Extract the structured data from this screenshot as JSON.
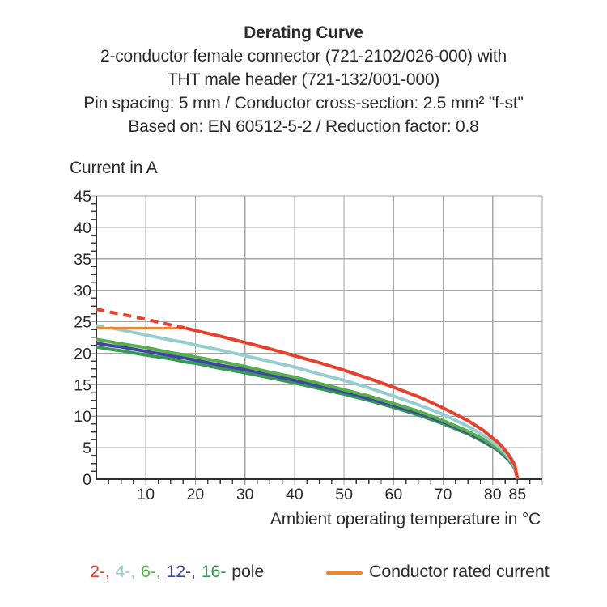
{
  "header": {
    "title": "Derating Curve",
    "subtitle_lines": [
      "2-conductor female connector (721-2102/026-000) with",
      "THT male header (721-132/001-000)",
      "Pin spacing: 5 mm / Conductor cross-section: 2.5 mm² \"f-st\"",
      "Based on: EN 60512-5-2 / Reduction factor: 0.8"
    ]
  },
  "chart_data": {
    "type": "line",
    "title": "Derating Curve",
    "xlabel": "Ambient operating temperature in °C",
    "ylabel": "Current in A",
    "xlim": [
      0,
      90
    ],
    "ylim": [
      0,
      45
    ],
    "grid": true,
    "x_major_step": 10,
    "x_minor_step": 2.5,
    "y_major_step": 5,
    "y_minor_step": 1.25,
    "x_tick_labels": [
      {
        "v": 10,
        "t": "10"
      },
      {
        "v": 20,
        "t": "20"
      },
      {
        "v": 30,
        "t": "30"
      },
      {
        "v": 40,
        "t": "40"
      },
      {
        "v": 50,
        "t": "50"
      },
      {
        "v": 60,
        "t": "60"
      },
      {
        "v": 70,
        "t": "70"
      },
      {
        "v": 80,
        "t": "80"
      },
      {
        "v": 85,
        "t": "85"
      }
    ],
    "y_tick_labels": [
      {
        "v": 0,
        "t": "0"
      },
      {
        "v": 5,
        "t": "5"
      },
      {
        "v": 10,
        "t": "10"
      },
      {
        "v": 15,
        "t": "15"
      },
      {
        "v": 20,
        "t": "20"
      },
      {
        "v": 25,
        "t": "25"
      },
      {
        "v": 30,
        "t": "30"
      },
      {
        "v": 35,
        "t": "35"
      },
      {
        "v": 40,
        "t": "40"
      },
      {
        "v": 45,
        "t": "45"
      }
    ],
    "x_samples": [
      0,
      3,
      5,
      10,
      15,
      18,
      20,
      25,
      30,
      35,
      40,
      45,
      50,
      55,
      60,
      65,
      70,
      75,
      78,
      80,
      81,
      82,
      83,
      84,
      84.5,
      85
    ],
    "series": [
      {
        "name": "2-pole",
        "color": "#e8402c",
        "dash_until": 18,
        "values": [
          27.0,
          26.5,
          26.2,
          25.4,
          24.5,
          24.0,
          23.6,
          22.7,
          21.7,
          20.7,
          19.6,
          18.5,
          17.3,
          16.0,
          14.6,
          13.1,
          11.3,
          9.3,
          7.8,
          6.5,
          5.9,
          5.1,
          4.1,
          2.9,
          2.1,
          0
        ]
      },
      {
        "name": "4-pole",
        "color": "#94ced1",
        "dash_until": 3,
        "values": [
          24.4,
          24.0,
          23.7,
          22.9,
          22.1,
          21.7,
          21.3,
          20.5,
          19.6,
          18.7,
          17.8,
          16.7,
          15.7,
          14.5,
          13.2,
          11.8,
          10.3,
          8.4,
          7.0,
          5.9,
          5.3,
          4.6,
          3.7,
          2.6,
          1.9,
          0
        ]
      },
      {
        "name": "6-pole",
        "color": "#55b04b",
        "dash_until": 0,
        "values": [
          22.2,
          21.8,
          21.5,
          20.9,
          20.1,
          19.7,
          19.4,
          18.7,
          17.9,
          17.0,
          16.2,
          15.2,
          14.2,
          13.2,
          12.0,
          10.8,
          9.3,
          7.6,
          6.4,
          5.4,
          4.8,
          4.2,
          3.4,
          2.4,
          1.7,
          0
        ]
      },
      {
        "name": "12-pole",
        "color": "#4145a3",
        "dash_until": 0,
        "values": [
          21.6,
          21.2,
          21.0,
          20.3,
          19.6,
          19.2,
          18.9,
          18.1,
          17.4,
          16.6,
          15.7,
          14.8,
          13.9,
          12.8,
          11.7,
          10.5,
          9.1,
          7.4,
          6.2,
          5.2,
          4.7,
          4.1,
          3.3,
          2.3,
          1.7,
          0
        ]
      },
      {
        "name": "16-pole",
        "color": "#359a52",
        "dash_until": 0,
        "values": [
          21.0,
          20.6,
          20.4,
          19.7,
          19.1,
          18.6,
          18.4,
          17.6,
          16.9,
          16.1,
          15.3,
          14.4,
          13.5,
          12.5,
          11.4,
          10.2,
          8.8,
          7.2,
          6.0,
          5.1,
          4.6,
          3.9,
          3.2,
          2.3,
          1.6,
          0
        ]
      }
    ],
    "reference_line": {
      "label": "Conductor rated current",
      "color": "#f0862b",
      "current": 24,
      "x_from": 0,
      "x_to": 18
    }
  },
  "legend": {
    "pole_items": [
      {
        "label": "2-,",
        "color": "#e8402c"
      },
      {
        "label": "4-,",
        "color": "#94ced1"
      },
      {
        "label": "6-,",
        "color": "#55b04b"
      },
      {
        "label": "12-,",
        "color": "#4145a3"
      },
      {
        "label": "16-",
        "color": "#359a52"
      }
    ],
    "pole_suffix": "pole",
    "rated_label": "Conductor rated current"
  }
}
